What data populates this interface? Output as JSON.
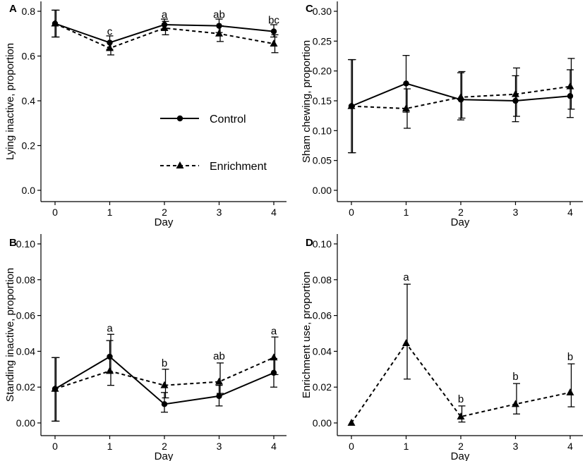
{
  "legend": {
    "entries": [
      {
        "name": "Control",
        "line": "solid",
        "marker": "circle"
      },
      {
        "name": "Enrichment",
        "line": "dashed",
        "marker": "triangle"
      }
    ]
  },
  "colors": {
    "ink": "#000000",
    "background": "#ffffff"
  },
  "chart_data": [
    {
      "panel": "A",
      "type": "line",
      "xlabel": "Day",
      "ylabel": "Lying inactive, proportion",
      "x": [
        0,
        1,
        2,
        3,
        4
      ],
      "xlim": [
        0,
        4
      ],
      "ylim": [
        0,
        0.8
      ],
      "yticks": [
        "0.0",
        "0.2",
        "0.4",
        "0.6",
        "0.8"
      ],
      "xticks": [
        "0",
        "1",
        "2",
        "3",
        "4"
      ],
      "grid": false,
      "legend": "center-right",
      "series": [
        {
          "name": "Control",
          "values": [
            0.745,
            0.66,
            0.74,
            0.735,
            0.71
          ],
          "err_low": [
            0.685,
            0.63,
            0.715,
            0.705,
            0.685
          ],
          "err_high": [
            0.805,
            0.69,
            0.765,
            0.765,
            0.74
          ]
        },
        {
          "name": "Enrichment",
          "values": [
            0.745,
            0.635,
            0.725,
            0.7,
            0.655
          ],
          "err_low": [
            0.685,
            0.605,
            0.695,
            0.665,
            0.615
          ],
          "err_high": [
            0.805,
            0.665,
            0.755,
            0.735,
            0.695
          ]
        }
      ],
      "annotations": [
        {
          "x": 1,
          "y": 0.695,
          "text": "c"
        },
        {
          "x": 2,
          "y": 0.77,
          "text": "a"
        },
        {
          "x": 3,
          "y": 0.77,
          "text": "ab"
        },
        {
          "x": 4,
          "y": 0.745,
          "text": "bc"
        }
      ]
    },
    {
      "panel": "B",
      "type": "line",
      "xlabel": "Day",
      "ylabel": "Standing inactive, proportion",
      "x": [
        0,
        1,
        2,
        3,
        4
      ],
      "xlim": [
        0,
        4
      ],
      "ylim": [
        0,
        0.1
      ],
      "yticks": [
        "0.00",
        "0.02",
        "0.04",
        "0.06",
        "0.08",
        "0.10"
      ],
      "xticks": [
        "0",
        "1",
        "2",
        "3",
        "4"
      ],
      "grid": false,
      "series": [
        {
          "name": "Control",
          "values": [
            0.019,
            0.037,
            0.0105,
            0.015,
            0.028
          ],
          "err_low": [
            0.001,
            0.028,
            0.006,
            0.0095,
            0.02
          ],
          "err_high": [
            0.0365,
            0.046,
            0.017,
            0.021,
            0.036
          ]
        },
        {
          "name": "Enrichment",
          "values": [
            0.019,
            0.029,
            0.021,
            0.023,
            0.0365
          ],
          "err_low": [
            0.001,
            0.021,
            0.014,
            0.0165,
            0.027
          ],
          "err_high": [
            0.0365,
            0.0495,
            0.03,
            0.0335,
            0.048
          ]
        }
      ],
      "annotations": [
        {
          "x": 1,
          "y": 0.051,
          "text": "a"
        },
        {
          "x": 2,
          "y": 0.0315,
          "text": "b"
        },
        {
          "x": 3,
          "y": 0.0355,
          "text": "ab"
        },
        {
          "x": 4,
          "y": 0.0495,
          "text": "a"
        }
      ]
    },
    {
      "panel": "C",
      "type": "line",
      "xlabel": "Day",
      "ylabel": "Sham chewing, proportion",
      "x": [
        0,
        1,
        2,
        3,
        4
      ],
      "xlim": [
        0,
        4
      ],
      "ylim": [
        0,
        0.3
      ],
      "yticks": [
        "0.00",
        "0.05",
        "0.10",
        "0.15",
        "0.20",
        "0.25",
        "0.30"
      ],
      "xticks": [
        "0",
        "1",
        "2",
        "3",
        "4"
      ],
      "grid": false,
      "series": [
        {
          "name": "Control",
          "values": [
            0.141,
            0.179,
            0.152,
            0.15,
            0.158
          ],
          "err_low": [
            0.063,
            0.131,
            0.118,
            0.115,
            0.122
          ],
          "err_high": [
            0.219,
            0.226,
            0.197,
            0.192,
            0.202
          ]
        },
        {
          "name": "Enrichment",
          "values": [
            0.141,
            0.137,
            0.156,
            0.161,
            0.174
          ],
          "err_low": [
            0.063,
            0.104,
            0.121,
            0.124,
            0.136
          ],
          "err_high": [
            0.219,
            0.17,
            0.199,
            0.205,
            0.221
          ]
        }
      ],
      "annotations": []
    },
    {
      "panel": "D",
      "type": "line",
      "xlabel": "Day",
      "ylabel": "Enrichment use, proportion",
      "x": [
        0,
        1,
        2,
        3,
        4
      ],
      "xlim": [
        0,
        4
      ],
      "ylim": [
        0,
        0.1
      ],
      "yticks": [
        "0.00",
        "0.02",
        "0.04",
        "0.06",
        "0.08",
        "0.10"
      ],
      "xticks": [
        "0",
        "1",
        "2",
        "3",
        "4"
      ],
      "grid": false,
      "series": [
        {
          "name": "Enrichment",
          "values": [
            0.0,
            0.0445,
            0.0035,
            0.0105,
            0.017
          ],
          "err_low": [
            0.0,
            0.0245,
            0.0005,
            0.005,
            0.009
          ],
          "err_high": [
            0.0,
            0.0775,
            0.0095,
            0.022,
            0.033
          ]
        }
      ],
      "annotations": [
        {
          "x": 1,
          "y": 0.0795,
          "text": "a"
        },
        {
          "x": 2,
          "y": 0.0115,
          "text": "b"
        },
        {
          "x": 3,
          "y": 0.024,
          "text": "b"
        },
        {
          "x": 4,
          "y": 0.035,
          "text": "b"
        }
      ]
    }
  ]
}
